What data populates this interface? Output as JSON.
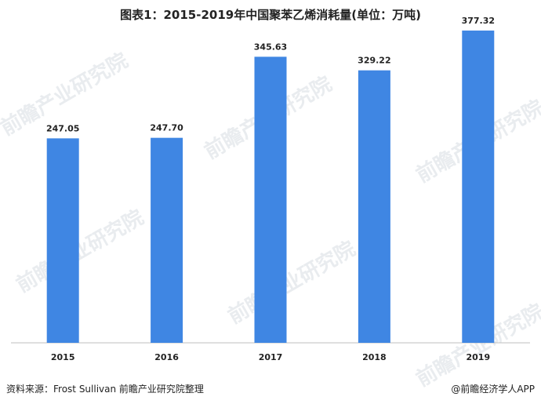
{
  "title": "图表1：2015-2019年中国聚苯乙烯消耗量(单位：万吨)",
  "footer": {
    "source": "资料来源：Frost Sullivan 前瞻产业研究院整理",
    "brand": "@前瞻经济学人APP"
  },
  "watermark": "前瞻产业研究院",
  "colors": {
    "bar": "#3f86e3",
    "axis": "#bfbfbf"
  },
  "chart_data": {
    "type": "bar",
    "title": "图表1：2015-2019年中国聚苯乙烯消耗量(单位：万吨)",
    "categories": [
      "2015",
      "2016",
      "2017",
      "2018",
      "2019"
    ],
    "values": [
      247.05,
      247.7,
      345.63,
      329.22,
      377.32
    ],
    "value_labels": [
      "247.05",
      "247.70",
      "345.63",
      "329.22",
      "377.32"
    ],
    "ylim": [
      0,
      400
    ],
    "grid": false,
    "legend": "none"
  }
}
